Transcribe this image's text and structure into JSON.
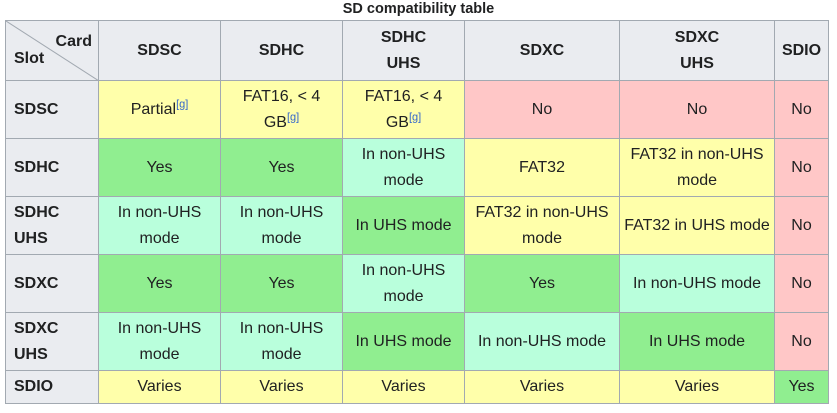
{
  "caption": "SD compatibility table",
  "corner": {
    "card": "Card",
    "slot": "Slot"
  },
  "columns": [
    {
      "line1": "SDSC",
      "line2": ""
    },
    {
      "line1": "SDHC",
      "line2": ""
    },
    {
      "line1": "SDHC",
      "line2": "UHS"
    },
    {
      "line1": "SDXC",
      "line2": ""
    },
    {
      "line1": "SDXC",
      "line2": "UHS"
    },
    {
      "line1": "SDIO",
      "line2": ""
    }
  ],
  "rows": [
    {
      "slot": {
        "line1": "SDSC",
        "line2": ""
      },
      "cells": [
        {
          "text": "Partial",
          "ref": "[g]",
          "status": "partial"
        },
        {
          "text": "FAT16, < 4 GB",
          "ref": "[g]",
          "status": "partial"
        },
        {
          "text": "FAT16, < 4 GB",
          "ref": "[g]",
          "status": "partial"
        },
        {
          "text": "No",
          "ref": "",
          "status": "no"
        },
        {
          "text": "No",
          "ref": "",
          "status": "no"
        },
        {
          "text": "No",
          "ref": "",
          "status": "no"
        }
      ]
    },
    {
      "slot": {
        "line1": "SDHC",
        "line2": ""
      },
      "cells": [
        {
          "text": "Yes",
          "ref": "",
          "status": "yes"
        },
        {
          "text": "Yes",
          "ref": "",
          "status": "yes"
        },
        {
          "text": "In non-UHS mode",
          "ref": "",
          "status": "mode"
        },
        {
          "text": "FAT32",
          "ref": "",
          "status": "partial"
        },
        {
          "text": "FAT32 in non-UHS mode",
          "ref": "",
          "status": "partial"
        },
        {
          "text": "No",
          "ref": "",
          "status": "no"
        }
      ]
    },
    {
      "slot": {
        "line1": "SDHC",
        "line2": "UHS"
      },
      "cells": [
        {
          "text": "In non-UHS mode",
          "ref": "",
          "status": "mode"
        },
        {
          "text": "In non-UHS mode",
          "ref": "",
          "status": "mode"
        },
        {
          "text": "In UHS mode",
          "ref": "",
          "status": "yes"
        },
        {
          "text": "FAT32 in non-UHS mode",
          "ref": "",
          "status": "partial"
        },
        {
          "text": "FAT32 in UHS mode",
          "ref": "",
          "status": "partial"
        },
        {
          "text": "No",
          "ref": "",
          "status": "no"
        }
      ]
    },
    {
      "slot": {
        "line1": "SDXC",
        "line2": ""
      },
      "cells": [
        {
          "text": "Yes",
          "ref": "",
          "status": "yes"
        },
        {
          "text": "Yes",
          "ref": "",
          "status": "yes"
        },
        {
          "text": "In non-UHS mode",
          "ref": "",
          "status": "mode"
        },
        {
          "text": "Yes",
          "ref": "",
          "status": "yes"
        },
        {
          "text": "In non-UHS mode",
          "ref": "",
          "status": "mode"
        },
        {
          "text": "No",
          "ref": "",
          "status": "no"
        }
      ]
    },
    {
      "slot": {
        "line1": "SDXC",
        "line2": "UHS"
      },
      "cells": [
        {
          "text": "In non-UHS mode",
          "ref": "",
          "status": "mode"
        },
        {
          "text": "In non-UHS mode",
          "ref": "",
          "status": "mode"
        },
        {
          "text": "In UHS mode",
          "ref": "",
          "status": "yes"
        },
        {
          "text": "In non-UHS mode",
          "ref": "",
          "status": "mode"
        },
        {
          "text": "In UHS mode",
          "ref": "",
          "status": "yes"
        },
        {
          "text": "No",
          "ref": "",
          "status": "no"
        }
      ]
    },
    {
      "slot": {
        "line1": "SDIO",
        "line2": ""
      },
      "cells": [
        {
          "text": "Varies",
          "ref": "",
          "status": "partial"
        },
        {
          "text": "Varies",
          "ref": "",
          "status": "partial"
        },
        {
          "text": "Varies",
          "ref": "",
          "status": "partial"
        },
        {
          "text": "Varies",
          "ref": "",
          "status": "partial"
        },
        {
          "text": "Varies",
          "ref": "",
          "status": "partial"
        },
        {
          "text": "Yes",
          "ref": "",
          "status": "yes"
        }
      ]
    }
  ],
  "colors": {
    "yes": "#90ee90",
    "partial": "#ffffaa",
    "no": "#ffc7c7",
    "mode": "#b9ffdc",
    "header": "#eaecf0",
    "border": "#a2a9b1",
    "link": "#3366cc"
  }
}
